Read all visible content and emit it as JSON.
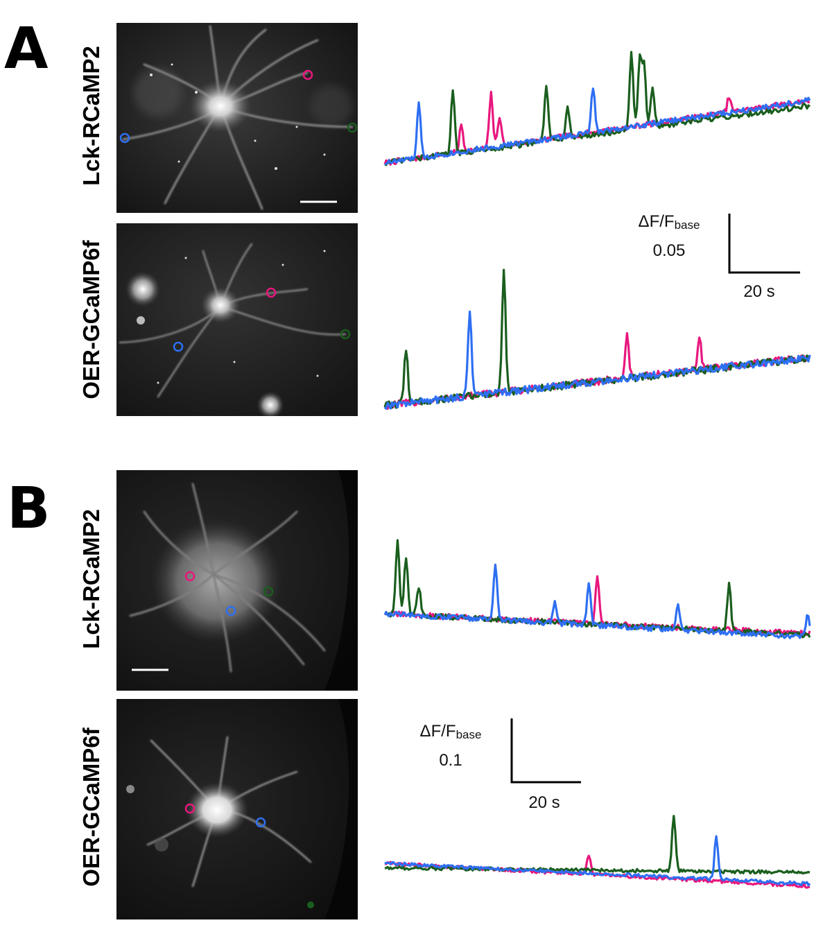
{
  "figure": {
    "panels": [
      {
        "letter": "A",
        "rows": [
          {
            "indicator": "Lck-RCaMP2",
            "has_scale_bar": true
          },
          {
            "indicator": "OER-GCaMP6f",
            "has_scale_bar": false
          }
        ],
        "scale": {
          "dff_label": "ΔF/F",
          "dff_sub": "base",
          "dff_value": "0.05",
          "time_value": "20 s"
        }
      },
      {
        "letter": "B",
        "rows": [
          {
            "indicator": "Lck-RCaMP2",
            "has_scale_bar": true
          },
          {
            "indicator": "OER-GCaMP6f",
            "has_scale_bar": false
          }
        ],
        "scale": {
          "dff_label": "ΔF/F",
          "dff_sub": "base",
          "dff_value": "0.1",
          "time_value": "20 s"
        }
      }
    ],
    "roi_colors": {
      "pink": "#e8177d",
      "green": "#1a5e1e",
      "blue": "#2e6ff2"
    }
  },
  "chart_data": [
    {
      "type": "line",
      "panel": "A",
      "indicator": "Lck-RCaMP2",
      "units": "ΔF/F_base",
      "series": [
        {
          "name": "pink ROI",
          "color": "#e8177d",
          "baseline_start": 0.0,
          "baseline_end": 0.082,
          "peaks": [
            {
              "t": 0.18,
              "h": 0.035
            },
            {
              "t": 0.25,
              "h": 0.07
            },
            {
              "t": 0.27,
              "h": 0.04
            },
            {
              "t": 0.81,
              "h": 0.02
            }
          ]
        },
        {
          "name": "green ROI",
          "color": "#1a5e1e",
          "baseline_start": 0.0,
          "baseline_end": 0.075,
          "peaks": [
            {
              "t": 0.16,
              "h": 0.085
            },
            {
              "t": 0.38,
              "h": 0.075
            },
            {
              "t": 0.43,
              "h": 0.045
            },
            {
              "t": 0.58,
              "h": 0.1
            },
            {
              "t": 0.6,
              "h": 0.095
            },
            {
              "t": 0.61,
              "h": 0.08
            },
            {
              "t": 0.63,
              "h": 0.055
            }
          ]
        },
        {
          "name": "blue ROI",
          "color": "#2e6ff2",
          "baseline_start": 0.0,
          "baseline_end": 0.082,
          "peaks": [
            {
              "t": 0.08,
              "h": 0.07
            },
            {
              "t": 0.49,
              "h": 0.058
            }
          ]
        }
      ]
    },
    {
      "type": "line",
      "panel": "A",
      "indicator": "OER-GCaMP6f",
      "units": "ΔF/F_base",
      "series": [
        {
          "name": "pink ROI",
          "color": "#e8177d",
          "baseline_start": 0.0,
          "baseline_end": 0.096,
          "peaks": [
            {
              "t": 0.57,
              "h": 0.085
            },
            {
              "t": 0.74,
              "h": 0.068
            }
          ]
        },
        {
          "name": "green ROI",
          "color": "#1a5e1e",
          "baseline_start": 0.0,
          "baseline_end": 0.094,
          "peaks": [
            {
              "t": 0.05,
              "h": 0.11
            },
            {
              "t": 0.28,
              "h": 0.24
            }
          ]
        },
        {
          "name": "blue ROI",
          "color": "#2e6ff2",
          "baseline_start": 0.0,
          "baseline_end": 0.095,
          "peaks": [
            {
              "t": 0.2,
              "h": 0.17
            }
          ]
        }
      ]
    },
    {
      "type": "line",
      "panel": "B",
      "indicator": "Lck-RCaMP2",
      "units": "ΔF/F_base",
      "series": [
        {
          "name": "pink ROI",
          "color": "#e8177d",
          "baseline_start": 0.0,
          "baseline_end": -0.055,
          "peaks": [
            {
              "t": 0.5,
              "h": 0.13
            }
          ]
        },
        {
          "name": "green ROI",
          "color": "#1a5e1e",
          "baseline_start": 0.0,
          "baseline_end": -0.06,
          "peaks": [
            {
              "t": 0.03,
              "h": 0.2
            },
            {
              "t": 0.05,
              "h": 0.16
            },
            {
              "t": 0.08,
              "h": 0.08
            },
            {
              "t": 0.81,
              "h": 0.13
            }
          ]
        },
        {
          "name": "blue ROI",
          "color": "#2e6ff2",
          "baseline_start": 0.0,
          "baseline_end": -0.065,
          "peaks": [
            {
              "t": 0.26,
              "h": 0.15
            },
            {
              "t": 0.4,
              "h": 0.06
            },
            {
              "t": 0.48,
              "h": 0.12
            },
            {
              "t": 0.69,
              "h": 0.07
            },
            {
              "t": 0.995,
              "h": 0.07
            }
          ]
        }
      ]
    },
    {
      "type": "line",
      "panel": "B",
      "indicator": "OER-GCaMP6f",
      "units": "ΔF/F_base",
      "series": [
        {
          "name": "pink ROI",
          "color": "#e8177d",
          "baseline_start": 0.0,
          "baseline_end": -0.1,
          "peaks": [
            {
              "t": 0.48,
              "h": 0.085
            }
          ]
        },
        {
          "name": "green ROI",
          "color": "#1a5e1e",
          "baseline_start": -0.02,
          "baseline_end": -0.04,
          "peaks": [
            {
              "t": 0.68,
              "h": 0.24
            }
          ]
        },
        {
          "name": "blue ROI",
          "color": "#2e6ff2",
          "baseline_start": 0.0,
          "baseline_end": -0.09,
          "peaks": [
            {
              "t": 0.78,
              "h": 0.19
            }
          ]
        }
      ]
    }
  ]
}
